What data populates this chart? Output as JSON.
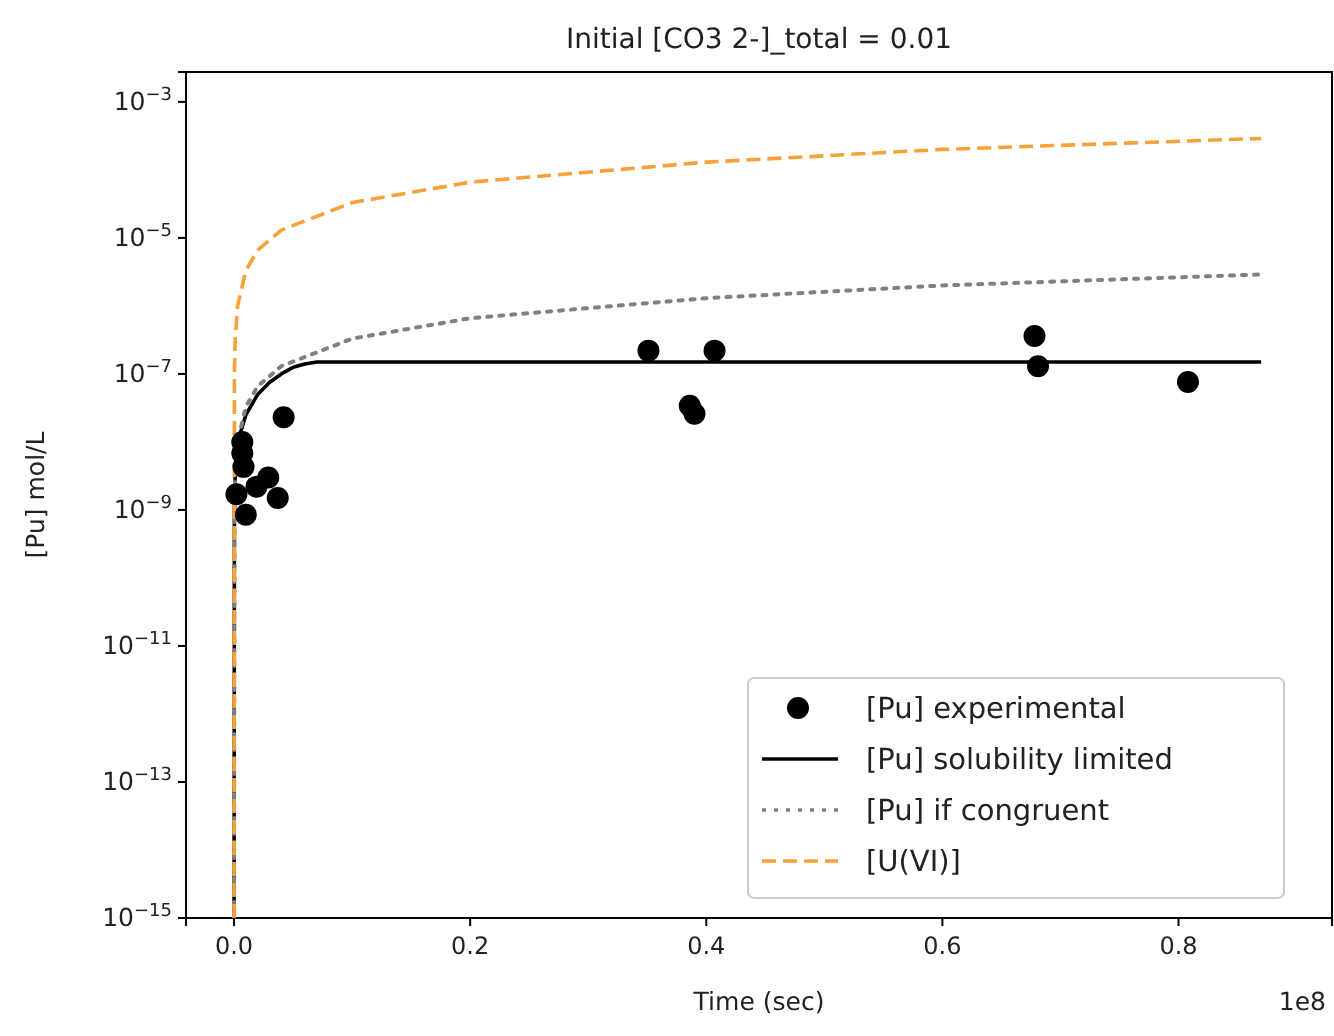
{
  "chart_data": {
    "type": "line",
    "title": "Initial [CO3 2-]_total = 0.01",
    "xlabel": "Time (sec)",
    "ylabel": "[Pu] mol/L",
    "log": "y",
    "grid": false,
    "legend": "bottom right",
    "xlim": [
      -0.0407,
      0.93
    ],
    "xticks": [
      {
        "value": 0,
        "label": "0.0"
      },
      0.2,
      0.4,
      0.6,
      0.8
    ],
    "ylim": [
      1e-15,
      0.00275
    ],
    "yticks": [
      {
        "value": 1e-15,
        "label": "10$^{−15}$"
      },
      {
        "value": 1e-13,
        "label": "10$^{−13}$"
      },
      {
        "value": 1e-11,
        "label": "10$^{−11}$"
      },
      {
        "value": 1e-09,
        "label": "10$^{−9}$"
      },
      {
        "value": 1e-07,
        "label": "10$^{−7}$"
      },
      {
        "value": 1e-05,
        "label": "10$^{−5}$"
      },
      {
        "value": 0.001,
        "label": "10$^{−3}$"
      }
    ],
    "annotations": [
      "1e8"
    ],
    "series": [
      {
        "name": "[Pu] experimental",
        "type": "scatter",
        "marker": "circle",
        "color": "#000000",
        "x": [
          0.007,
          0.007,
          0.008,
          0.002,
          0.01,
          0.019,
          0.029,
          0.037,
          0.042,
          0.351,
          0.386,
          0.39,
          0.407,
          0.678,
          0.681,
          0.808
        ],
        "values": [
          1e-08,
          6.8e-09,
          4.3e-09,
          1.7e-09,
          8.5e-10,
          2.2e-09,
          3e-09,
          1.5e-09,
          2.3e-08,
          2.2e-07,
          3.4e-08,
          2.6e-08,
          2.2e-07,
          3.6e-07,
          1.3e-07,
          7.6e-08
        ]
      },
      {
        "name": "[Pu] solubility limited",
        "type": "line",
        "line_style": "solid",
        "color": "#000000",
        "x": [
          0,
          0.0003,
          0.001,
          0.003,
          0.01,
          0.02,
          0.03,
          0.04,
          0.05,
          0.06,
          0.07,
          0.87
        ],
        "values": [
          1e-15,
          1e-09,
          3.3e-09,
          1e-08,
          2.5e-08,
          5e-08,
          7.5e-08,
          1e-07,
          1.25e-07,
          1.4e-07,
          1.5e-07,
          1.5e-07
        ]
      },
      {
        "name": "[Pu] if congruent",
        "type": "line",
        "line_style": "dotted",
        "color": "#808080",
        "x": [
          0,
          0.0003,
          0.001,
          0.003,
          0.01,
          0.02,
          0.04,
          0.1,
          0.2,
          0.4,
          0.6,
          0.87
        ],
        "values": [
          1e-15,
          1e-09,
          3.3e-09,
          1e-08,
          3.3e-08,
          6.6e-08,
          1.3e-07,
          3.3e-07,
          6.6e-07,
          1.3e-06,
          2e-06,
          2.9e-06
        ]
      },
      {
        "name": "[U(VI)]",
        "type": "line",
        "line_style": "dashed",
        "color": "#f7a13a",
        "x": [
          0,
          0.0003,
          0.001,
          0.003,
          0.01,
          0.02,
          0.04,
          0.1,
          0.2,
          0.4,
          0.6,
          0.87
        ],
        "values": [
          1e-15,
          1e-07,
          3.3e-07,
          1e-06,
          3.3e-06,
          6.6e-06,
          1.3e-05,
          3.3e-05,
          6.6e-05,
          0.00013,
          0.0002,
          0.00029
        ]
      }
    ]
  }
}
